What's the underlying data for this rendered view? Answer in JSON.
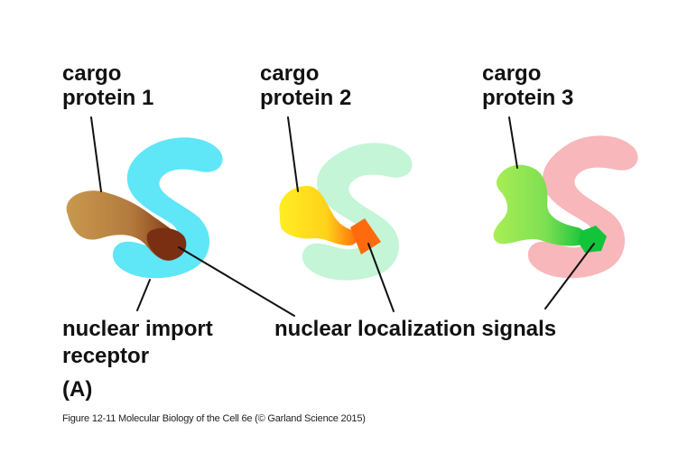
{
  "cargo_labels": [
    {
      "line1": "cargo",
      "line2": "protein 1"
    },
    {
      "line1": "cargo",
      "line2": "protein 2"
    },
    {
      "line1": "cargo",
      "line2": "protein 3"
    }
  ],
  "receptor_label": {
    "line1": "nuclear import",
    "line2": "receptor"
  },
  "nls_label": "nuclear localization signals",
  "panel_letter": "(A)",
  "caption": "Figure 12-11  Molecular Biology of the Cell 6e (© Garland Science 2015)",
  "colors": {
    "receptor_1": "#5fe6f7",
    "receptor_2": "#c3f5d6",
    "receptor_3": "#f7b7bb",
    "cargo_1": "#c8994f",
    "nls_1": "#7a2e12",
    "cargo_2": "#ffee22",
    "nls_2": "#ff6a0c",
    "cargo_3": "#a8ee55",
    "nls_3": "#13c33a"
  }
}
